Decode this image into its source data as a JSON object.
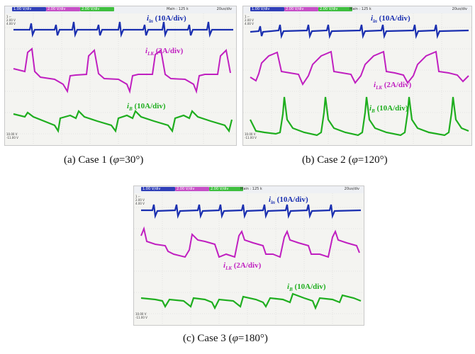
{
  "panels": [
    {
      "caption_prefix": "(a) Case 1 (",
      "phi_symbol": "φ",
      "caption_value": "=30°)",
      "header": {
        "ch1": "1.00 V/div",
        "ch2": "2.00 V/div",
        "ch3": "2.00 V/div",
        "mode": "Main : 125 k",
        "timebase": "20us/div"
      },
      "sidebar": [
        "1 ⌐",
        "2.00 V",
        "4.00 V",
        "10.00 V",
        "-11.00 V"
      ],
      "labels": {
        "iin_sym": "i",
        "iin_sub": "in",
        "iin_scale": " (10A/div)",
        "ilk_sym": "i",
        "ilk_sub": "LK",
        "ilk_scale": " (2A/div)",
        "ib_sym": "i",
        "ib_sub": "B",
        "ib_scale": " (10A/div)"
      }
    },
    {
      "caption_prefix": "(b) Case 2 (",
      "phi_symbol": "φ",
      "caption_value": "=120°)",
      "header": {
        "ch1": "1.00 V/div",
        "ch2": "2.00 V/div",
        "ch3": "2.00 V/div",
        "mode": "Main : 125 k",
        "timebase": "20us/div"
      },
      "sidebar": [
        "1 ⌐",
        "2.00 V",
        "4.00 V",
        "10.00 V",
        "-11.00 V"
      ],
      "labels": {
        "iin_sym": "i",
        "iin_sub": "in",
        "iin_scale": " (10A/div)",
        "ilk_sym": "i",
        "ilk_sub": "LK",
        "ilk_scale": " (2A/div)",
        "ib_sym": "i",
        "ib_sub": "B",
        "ib_scale": " (10A/div)"
      }
    },
    {
      "caption_prefix": "(c) Case 3 (",
      "phi_symbol": "φ",
      "caption_value": "=180°)",
      "header": {
        "ch1": "1.00 V/div",
        "ch2": "2.00 V/div",
        "ch3": "2.00 V/div",
        "mode": "Main : 125 k",
        "timebase": "20us/div"
      },
      "sidebar": [
        "1 ⌐",
        "2.00 V",
        "4.00 V",
        "10.00 V",
        "-11.00 V"
      ],
      "labels": {
        "iin_sym": "i",
        "iin_sub": "in",
        "iin_scale": " (10A/div)",
        "ilk_sym": "i",
        "ilk_sub": "LK",
        "ilk_scale": " (2A/div)",
        "ib_sym": "i",
        "ib_sub": "B",
        "ib_scale": " (10A/div)"
      }
    }
  ],
  "colors": {
    "iin": "#1a2fb0",
    "ilk": "#c01fc0",
    "ib": "#1fae1f",
    "grid": "#d0d0d0"
  }
}
